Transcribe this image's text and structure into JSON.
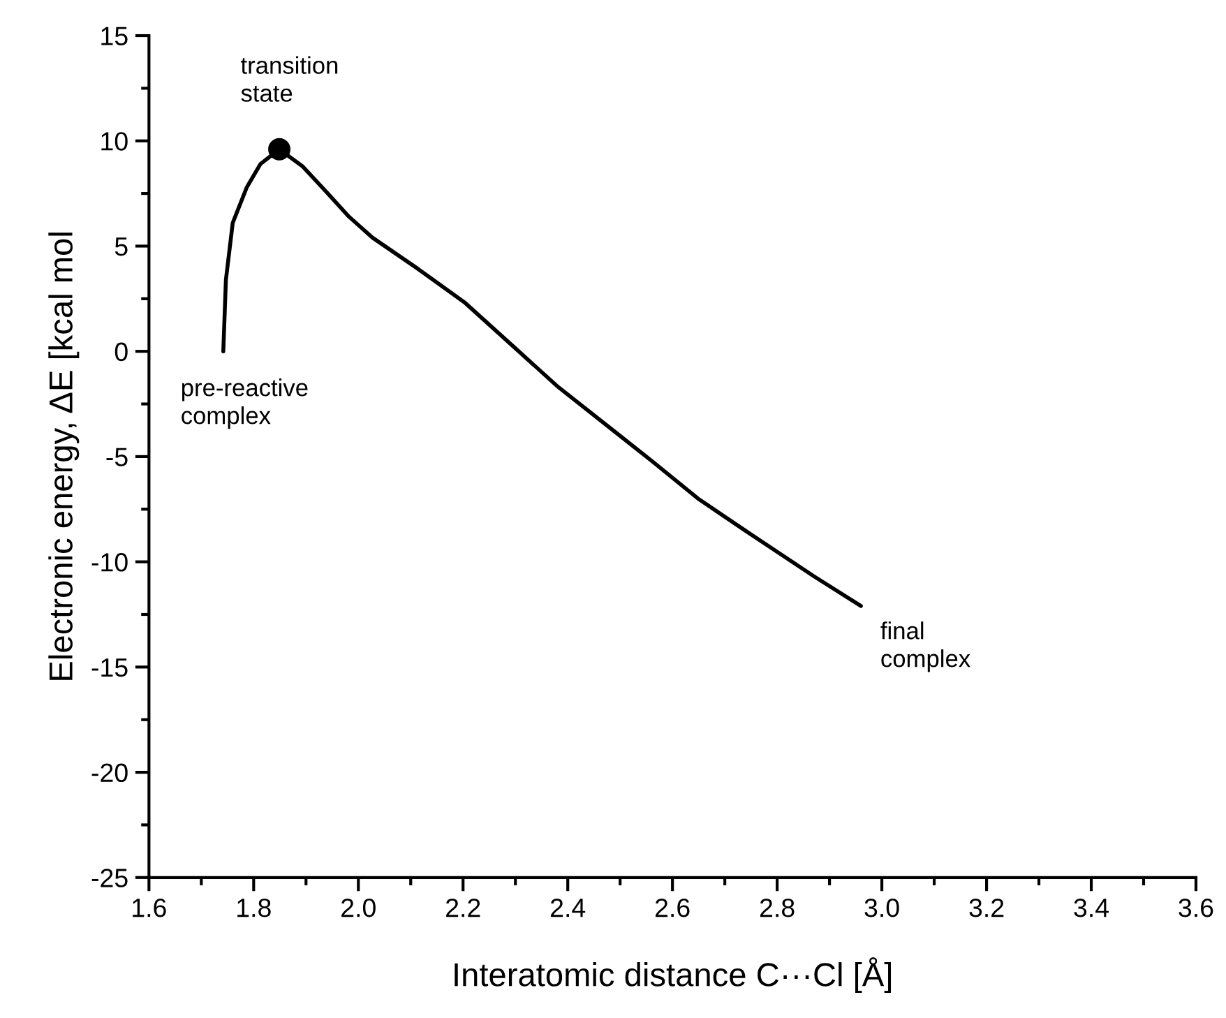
{
  "chart_data": {
    "type": "line",
    "xlabel": "Interatomic distance C···Cl [Å]",
    "ylabel": "Electronic energy, ΔE [kcal mol",
    "series": [
      {
        "color": "#000000",
        "x": [
          1.742,
          1.747,
          1.76,
          1.787,
          1.813,
          1.849,
          1.893,
          1.938,
          1.982,
          2.027,
          2.115,
          2.204,
          2.293,
          2.382,
          2.489,
          2.56,
          2.649,
          2.738,
          2.871,
          2.96
        ],
        "values": [
          0,
          3.4,
          6.1,
          7.8,
          8.9,
          9.6,
          8.8,
          7.6,
          6.4,
          5.4,
          3.9,
          2.3,
          0.3,
          -1.7,
          -3.8,
          -5.2,
          -7.0,
          -8.5,
          -10.7,
          -12.1
        ]
      },
      {
        "type": "scatter",
        "color": "#000000",
        "marker": "circle",
        "x": [
          1.849
        ],
        "values": [
          9.6
        ]
      }
    ],
    "annotations": [
      {
        "text": "transition\nstate",
        "x": 1.849,
        "y": 9.6
      },
      {
        "text": "pre-reactive\ncomplex",
        "x": 1.742,
        "y": 0
      },
      {
        "text": "final\ncomplex",
        "x": 2.96,
        "y": -12.1
      }
    ],
    "xlim": [
      1.6,
      3.6
    ],
    "xticks": [
      1.6,
      {
        "value": 1.7,
        "label": null
      },
      1.8,
      {
        "value": 1.9,
        "label": null
      },
      "2.0",
      {
        "value": 2.1,
        "label": null
      },
      2.2,
      {
        "value": 2.3,
        "label": null
      },
      2.4,
      {
        "value": 2.5,
        "label": null
      },
      2.6,
      {
        "value": 2.7,
        "label": null
      },
      2.8,
      {
        "value": 2.9,
        "label": null
      },
      "3.0",
      {
        "value": 3.1,
        "label": null
      },
      3.2,
      {
        "value": 3.3,
        "label": null
      },
      3.4,
      {
        "value": 3.5,
        "label": null
      },
      3.6
    ],
    "ylim": [
      -25,
      15
    ],
    "yticks": [
      -25,
      {
        "value": -22.5,
        "label": null
      },
      -20,
      {
        "value": -17.5,
        "label": null
      },
      -15,
      {
        "value": -12.5,
        "label": null
      },
      -10,
      {
        "value": -7.5,
        "label": null
      },
      -5,
      {
        "value": -2.5,
        "label": null
      },
      0,
      {
        "value": 2.5,
        "label": null
      },
      5,
      {
        "value": 7.5,
        "label": null
      },
      10,
      {
        "value": 12.5,
        "label": null
      },
      15
    ],
    "grid": false
  }
}
